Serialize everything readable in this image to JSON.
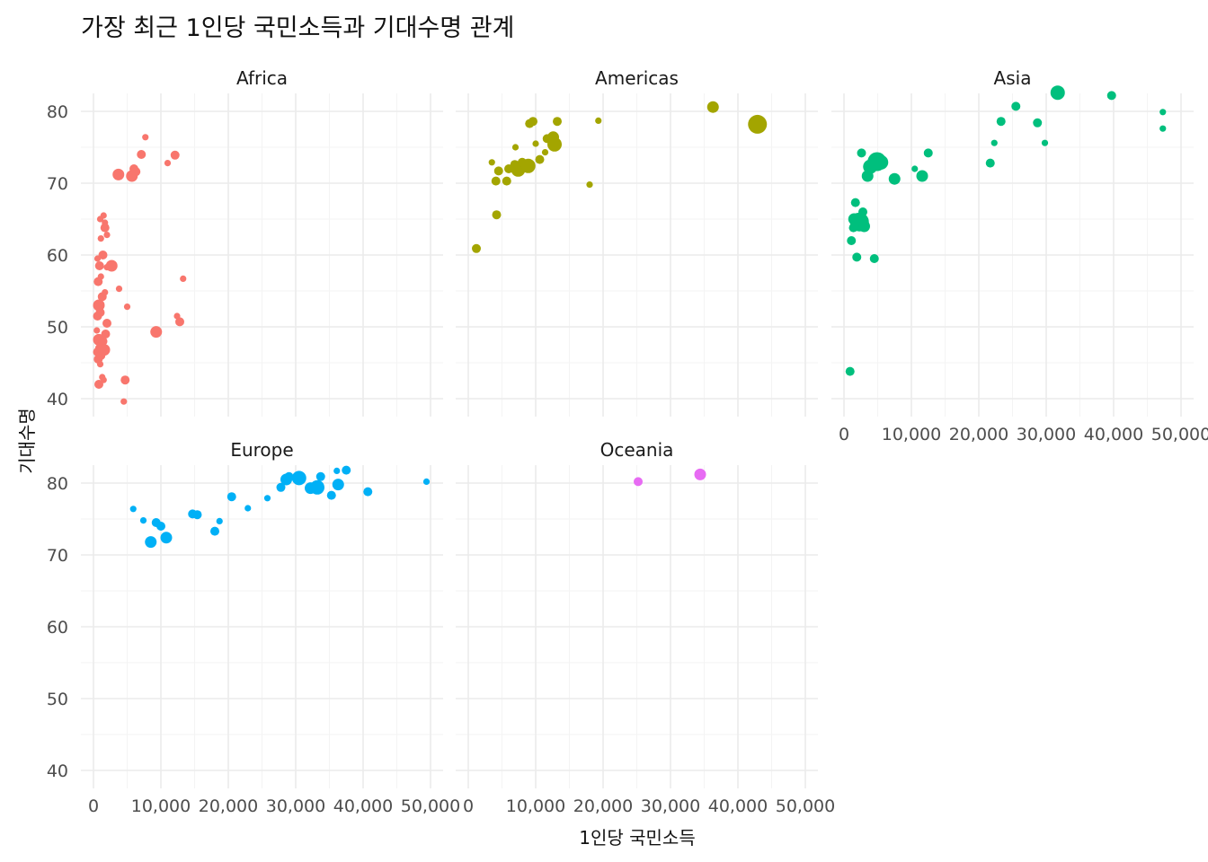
{
  "chart_data": {
    "type": "scatter",
    "title": "가장 최근 1인당 국민소득과 기대수명 관계",
    "xlabel": "1인당 국민소득",
    "ylabel": "기대수명",
    "xlim": [
      0,
      50000
    ],
    "ylim": [
      40,
      80
    ],
    "x_ticks": [
      0,
      10000,
      20000,
      30000,
      40000,
      50000
    ],
    "x_tick_labels": [
      "0",
      "10,000",
      "20,000",
      "30,000",
      "40,000",
      "50,000"
    ],
    "y_ticks": [
      40,
      50,
      60,
      70,
      80
    ],
    "y_tick_labels": [
      "40",
      "50",
      "60",
      "70",
      "80"
    ],
    "grid": true,
    "legend": "none",
    "size_encodes": "population",
    "facets": [
      {
        "name": "Africa",
        "color": "#F8766D",
        "points": [
          {
            "x": 600,
            "y": 46.5,
            "s": 1
          },
          {
            "x": 700,
            "y": 45.5,
            "s": 1
          },
          {
            "x": 800,
            "y": 48.2,
            "s": 2
          },
          {
            "x": 900,
            "y": 47.0,
            "s": 1
          },
          {
            "x": 500,
            "y": 49.5,
            "s": 0
          },
          {
            "x": 1000,
            "y": 44.8,
            "s": 0
          },
          {
            "x": 1100,
            "y": 46.0,
            "s": 1
          },
          {
            "x": 1200,
            "y": 47.5,
            "s": 1
          },
          {
            "x": 1300,
            "y": 43.0,
            "s": 0
          },
          {
            "x": 800,
            "y": 42.0,
            "s": 1
          },
          {
            "x": 1500,
            "y": 42.6,
            "s": 0
          },
          {
            "x": 1400,
            "y": 48.0,
            "s": 1
          },
          {
            "x": 1600,
            "y": 46.8,
            "s": 2
          },
          {
            "x": 1800,
            "y": 49.0,
            "s": 1
          },
          {
            "x": 2000,
            "y": 50.5,
            "s": 1
          },
          {
            "x": 600,
            "y": 51.5,
            "s": 1
          },
          {
            "x": 800,
            "y": 53.0,
            "s": 2
          },
          {
            "x": 1000,
            "y": 52.0,
            "s": 1
          },
          {
            "x": 1300,
            "y": 54.2,
            "s": 1
          },
          {
            "x": 700,
            "y": 56.3,
            "s": 1
          },
          {
            "x": 1100,
            "y": 57.0,
            "s": 0
          },
          {
            "x": 1700,
            "y": 54.8,
            "s": 0
          },
          {
            "x": 900,
            "y": 58.5,
            "s": 1
          },
          {
            "x": 600,
            "y": 59.5,
            "s": 0
          },
          {
            "x": 1400,
            "y": 60.0,
            "s": 1
          },
          {
            "x": 2000,
            "y": 58.3,
            "s": 0
          },
          {
            "x": 2700,
            "y": 58.5,
            "s": 2
          },
          {
            "x": 1100,
            "y": 62.3,
            "s": 0
          },
          {
            "x": 1700,
            "y": 63.8,
            "s": 1
          },
          {
            "x": 1000,
            "y": 65.0,
            "s": 0
          },
          {
            "x": 1500,
            "y": 65.5,
            "s": 0
          },
          {
            "x": 1700,
            "y": 64.5,
            "s": 0
          },
          {
            "x": 2000,
            "y": 62.8,
            "s": 0
          },
          {
            "x": 3800,
            "y": 55.3,
            "s": 0
          },
          {
            "x": 5000,
            "y": 52.8,
            "s": 0
          },
          {
            "x": 4700,
            "y": 42.6,
            "s": 1
          },
          {
            "x": 4500,
            "y": 39.6,
            "s": 0
          },
          {
            "x": 9300,
            "y": 49.3,
            "s": 2
          },
          {
            "x": 12400,
            "y": 51.5,
            "s": 0
          },
          {
            "x": 12800,
            "y": 50.7,
            "s": 1
          },
          {
            "x": 13300,
            "y": 56.7,
            "s": 0
          },
          {
            "x": 3700,
            "y": 71.2,
            "s": 2
          },
          {
            "x": 5700,
            "y": 71.0,
            "s": 2
          },
          {
            "x": 6000,
            "y": 72.0,
            "s": 1
          },
          {
            "x": 6300,
            "y": 71.6,
            "s": 1
          },
          {
            "x": 7100,
            "y": 74.0,
            "s": 1
          },
          {
            "x": 7700,
            "y": 76.4,
            "s": 0
          },
          {
            "x": 11000,
            "y": 72.8,
            "s": 0
          },
          {
            "x": 12100,
            "y": 73.9,
            "s": 1
          }
        ]
      },
      {
        "name": "Americas",
        "color": "#A3A500",
        "points": [
          {
            "x": 1200,
            "y": 60.9,
            "s": 1
          },
          {
            "x": 3500,
            "y": 72.9,
            "s": 0
          },
          {
            "x": 4100,
            "y": 70.3,
            "s": 1
          },
          {
            "x": 4500,
            "y": 71.7,
            "s": 1
          },
          {
            "x": 4200,
            "y": 65.6,
            "s": 1
          },
          {
            "x": 5700,
            "y": 70.3,
            "s": 1
          },
          {
            "x": 6000,
            "y": 72.0,
            "s": 1
          },
          {
            "x": 6900,
            "y": 72.6,
            "s": 1
          },
          {
            "x": 7000,
            "y": 75.0,
            "s": 0
          },
          {
            "x": 7400,
            "y": 71.9,
            "s": 3
          },
          {
            "x": 8000,
            "y": 72.9,
            "s": 1
          },
          {
            "x": 8900,
            "y": 72.4,
            "s": 3
          },
          {
            "x": 9100,
            "y": 78.3,
            "s": 1
          },
          {
            "x": 9600,
            "y": 78.6,
            "s": 1
          },
          {
            "x": 10000,
            "y": 75.5,
            "s": 0
          },
          {
            "x": 10600,
            "y": 73.3,
            "s": 1
          },
          {
            "x": 11400,
            "y": 74.3,
            "s": 0
          },
          {
            "x": 11700,
            "y": 76.2,
            "s": 1
          },
          {
            "x": 12600,
            "y": 76.4,
            "s": 2
          },
          {
            "x": 12800,
            "y": 75.4,
            "s": 3
          },
          {
            "x": 13200,
            "y": 78.6,
            "s": 1
          },
          {
            "x": 18000,
            "y": 69.8,
            "s": 0
          },
          {
            "x": 19300,
            "y": 78.7,
            "s": 0
          },
          {
            "x": 36300,
            "y": 80.6,
            "s": 2
          },
          {
            "x": 42900,
            "y": 78.2,
            "s": 5
          }
        ]
      },
      {
        "name": "Asia",
        "color": "#00BF7D",
        "points": [
          {
            "x": 900,
            "y": 43.8,
            "s": 1
          },
          {
            "x": 1100,
            "y": 62.0,
            "s": 1
          },
          {
            "x": 1400,
            "y": 63.8,
            "s": 1
          },
          {
            "x": 1500,
            "y": 65.0,
            "s": 2
          },
          {
            "x": 1700,
            "y": 67.3,
            "s": 1
          },
          {
            "x": 1900,
            "y": 59.7,
            "s": 1
          },
          {
            "x": 2300,
            "y": 64.6,
            "s": 5
          },
          {
            "x": 2600,
            "y": 74.2,
            "s": 1
          },
          {
            "x": 2800,
            "y": 66.0,
            "s": 1
          },
          {
            "x": 3000,
            "y": 64.0,
            "s": 2
          },
          {
            "x": 3500,
            "y": 71.0,
            "s": 2
          },
          {
            "x": 3900,
            "y": 72.3,
            "s": 3
          },
          {
            "x": 4500,
            "y": 59.5,
            "s": 1
          },
          {
            "x": 4700,
            "y": 72.5,
            "s": 1
          },
          {
            "x": 4900,
            "y": 73.0,
            "s": 5
          },
          {
            "x": 5500,
            "y": 72.9,
            "s": 3
          },
          {
            "x": 7500,
            "y": 70.6,
            "s": 2
          },
          {
            "x": 10500,
            "y": 72.0,
            "s": 0
          },
          {
            "x": 11600,
            "y": 71.0,
            "s": 2
          },
          {
            "x": 12500,
            "y": 74.2,
            "s": 1
          },
          {
            "x": 21700,
            "y": 72.8,
            "s": 1
          },
          {
            "x": 22300,
            "y": 75.6,
            "s": 0
          },
          {
            "x": 23300,
            "y": 78.6,
            "s": 1
          },
          {
            "x": 25500,
            "y": 80.7,
            "s": 1
          },
          {
            "x": 28700,
            "y": 78.4,
            "s": 1
          },
          {
            "x": 29800,
            "y": 75.6,
            "s": 0
          },
          {
            "x": 31700,
            "y": 82.6,
            "s": 3
          },
          {
            "x": 39700,
            "y": 82.2,
            "s": 1
          },
          {
            "x": 47300,
            "y": 79.9,
            "s": 0
          },
          {
            "x": 47300,
            "y": 77.6,
            "s": 0
          }
        ]
      },
      {
        "name": "Europe",
        "color": "#00B0F6",
        "points": [
          {
            "x": 5900,
            "y": 76.4,
            "s": 0
          },
          {
            "x": 7400,
            "y": 74.8,
            "s": 0
          },
          {
            "x": 8500,
            "y": 71.8,
            "s": 2
          },
          {
            "x": 9300,
            "y": 74.5,
            "s": 1
          },
          {
            "x": 10000,
            "y": 74.0,
            "s": 1
          },
          {
            "x": 10800,
            "y": 72.4,
            "s": 2
          },
          {
            "x": 14700,
            "y": 75.7,
            "s": 1
          },
          {
            "x": 15400,
            "y": 75.6,
            "s": 1
          },
          {
            "x": 18000,
            "y": 73.3,
            "s": 1
          },
          {
            "x": 18700,
            "y": 74.7,
            "s": 0
          },
          {
            "x": 20500,
            "y": 78.1,
            "s": 1
          },
          {
            "x": 22900,
            "y": 76.5,
            "s": 0
          },
          {
            "x": 25800,
            "y": 77.9,
            "s": 0
          },
          {
            "x": 27800,
            "y": 79.4,
            "s": 1
          },
          {
            "x": 28600,
            "y": 80.5,
            "s": 2
          },
          {
            "x": 29000,
            "y": 80.9,
            "s": 1
          },
          {
            "x": 30500,
            "y": 80.7,
            "s": 3
          },
          {
            "x": 32200,
            "y": 79.3,
            "s": 2
          },
          {
            "x": 33200,
            "y": 79.4,
            "s": 3
          },
          {
            "x": 33700,
            "y": 80.9,
            "s": 1
          },
          {
            "x": 35300,
            "y": 78.3,
            "s": 1
          },
          {
            "x": 36100,
            "y": 81.7,
            "s": 0
          },
          {
            "x": 36300,
            "y": 79.8,
            "s": 2
          },
          {
            "x": 37500,
            "y": 81.8,
            "s": 1
          },
          {
            "x": 40700,
            "y": 78.8,
            "s": 1
          },
          {
            "x": 49400,
            "y": 80.2,
            "s": 0
          }
        ]
      },
      {
        "name": "Oceania",
        "color": "#E76BF3",
        "points": [
          {
            "x": 25200,
            "y": 80.2,
            "s": 1
          },
          {
            "x": 34400,
            "y": 81.2,
            "s": 2
          }
        ]
      }
    ]
  }
}
